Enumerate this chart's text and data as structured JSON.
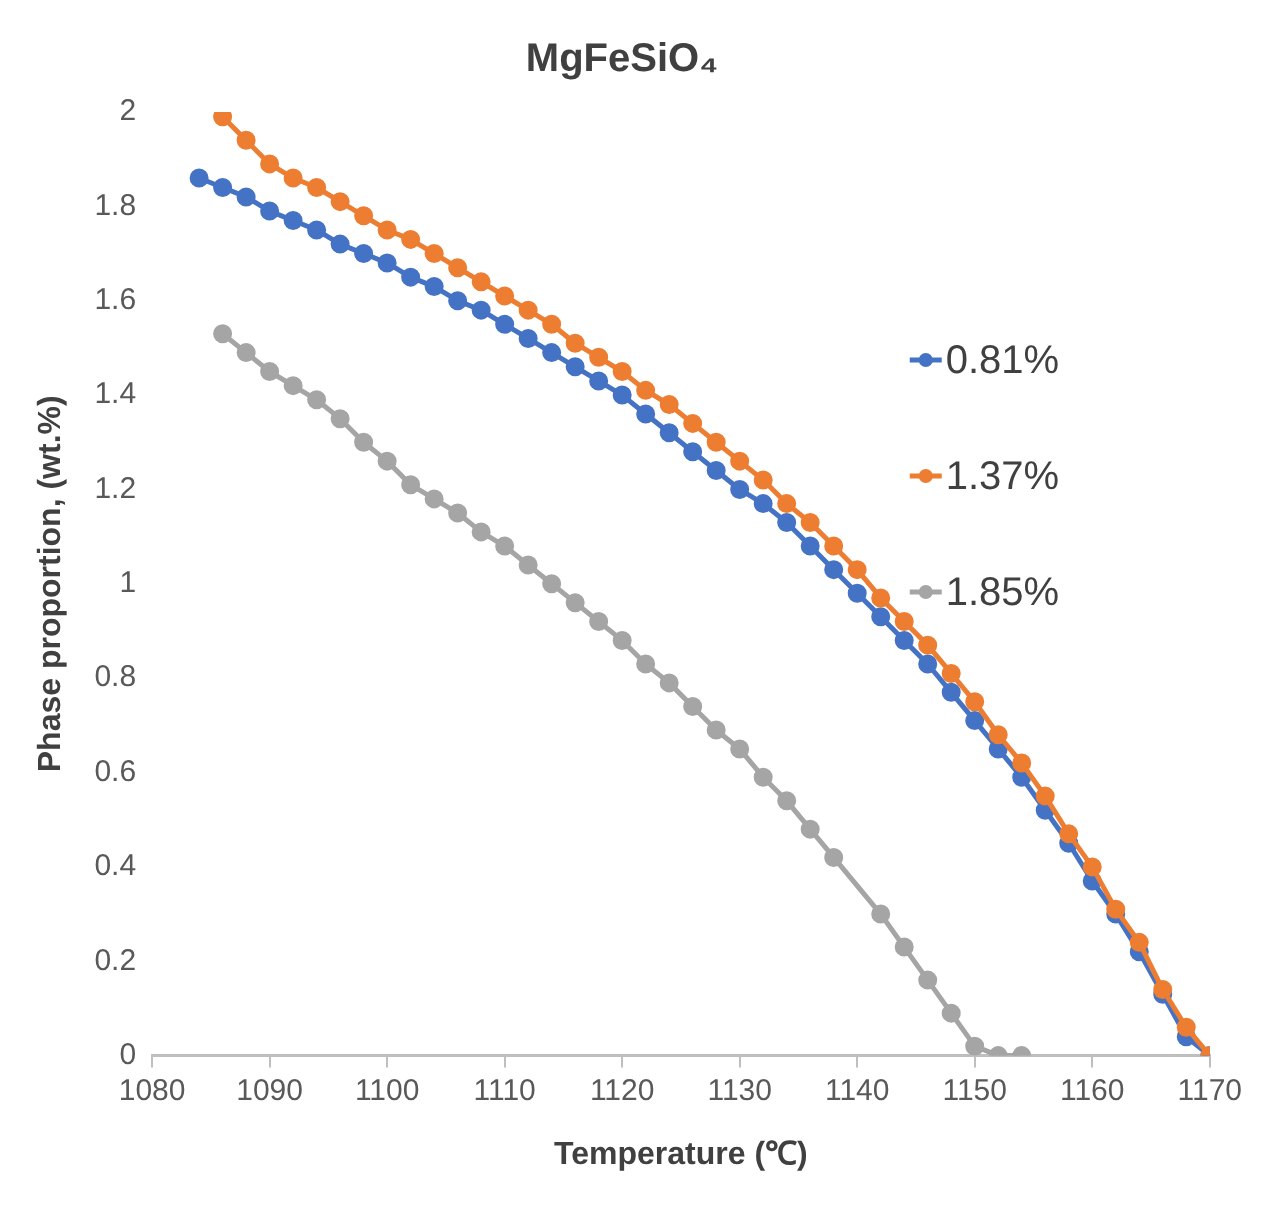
{
  "chart_data": {
    "type": "line",
    "title": "MgFeSiO₄",
    "xlabel": "Temperature (℃)",
    "ylabel": "Phase proportion, (wt.%)",
    "xlim": [
      1080,
      1170
    ],
    "ylim": [
      0,
      2
    ],
    "xticks": [
      1080,
      1090,
      1100,
      1110,
      1120,
      1130,
      1140,
      1150,
      1160,
      1170
    ],
    "yticks": [
      0,
      0.2,
      0.4,
      0.6,
      0.8,
      1,
      1.2,
      1.4,
      1.6,
      1.8,
      2
    ],
    "grid": false,
    "legend": "right",
    "marker": "circle",
    "line_style": "solid",
    "series": [
      {
        "name": "0.81%",
        "color": "#4472c4",
        "x": [
          1084,
          1086,
          1088,
          1090,
          1092,
          1094,
          1096,
          1098,
          1100,
          1102,
          1104,
          1106,
          1108,
          1110,
          1112,
          1114,
          1116,
          1118,
          1120,
          1122,
          1124,
          1126,
          1128,
          1130,
          1132,
          1134,
          1136,
          1138,
          1140,
          1142,
          1144,
          1146,
          1148,
          1150,
          1152,
          1154,
          1156,
          1158,
          1160,
          1162,
          1164,
          1166,
          1168,
          1170
        ],
        "values": [
          1.86,
          1.84,
          1.82,
          1.79,
          1.77,
          1.75,
          1.72,
          1.7,
          1.68,
          1.65,
          1.63,
          1.6,
          1.58,
          1.55,
          1.52,
          1.49,
          1.46,
          1.43,
          1.4,
          1.36,
          1.32,
          1.28,
          1.24,
          1.2,
          1.17,
          1.13,
          1.08,
          1.03,
          0.98,
          0.93,
          0.88,
          0.83,
          0.77,
          0.71,
          0.65,
          0.59,
          0.52,
          0.45,
          0.37,
          0.3,
          0.22,
          0.13,
          0.04,
          0
        ]
      },
      {
        "name": "1.37%",
        "color": "#ed7d31",
        "x": [
          1086,
          1088,
          1090,
          1092,
          1094,
          1096,
          1098,
          1100,
          1102,
          1104,
          1106,
          1108,
          1110,
          1112,
          1114,
          1116,
          1118,
          1120,
          1122,
          1124,
          1126,
          1128,
          1130,
          1132,
          1134,
          1136,
          1138,
          1140,
          1142,
          1144,
          1146,
          1148,
          1150,
          1152,
          1154,
          1156,
          1158,
          1160,
          1162,
          1164,
          1166,
          1168,
          1170
        ],
        "values": [
          1.99,
          1.94,
          1.89,
          1.86,
          1.84,
          1.81,
          1.78,
          1.75,
          1.73,
          1.7,
          1.67,
          1.64,
          1.61,
          1.58,
          1.55,
          1.51,
          1.48,
          1.45,
          1.41,
          1.38,
          1.34,
          1.3,
          1.26,
          1.22,
          1.17,
          1.13,
          1.08,
          1.03,
          0.97,
          0.92,
          0.87,
          0.81,
          0.75,
          0.68,
          0.62,
          0.55,
          0.47,
          0.4,
          0.31,
          0.24,
          0.14,
          0.06,
          0
        ]
      },
      {
        "name": "1.85%",
        "color": "#a5a5a5",
        "x": [
          1086,
          1088,
          1090,
          1092,
          1094,
          1096,
          1098,
          1100,
          1102,
          1104,
          1106,
          1108,
          1110,
          1112,
          1114,
          1116,
          1118,
          1120,
          1122,
          1124,
          1126,
          1128,
          1130,
          1132,
          1134,
          1136,
          1138,
          1142,
          1144,
          1146,
          1148,
          1150,
          1152,
          1154
        ],
        "values": [
          1.53,
          1.49,
          1.45,
          1.42,
          1.39,
          1.35,
          1.3,
          1.26,
          1.21,
          1.18,
          1.15,
          1.11,
          1.08,
          1.04,
          1,
          0.96,
          0.92,
          0.88,
          0.83,
          0.79,
          0.74,
          0.69,
          0.65,
          0.59,
          0.54,
          0.48,
          0.42,
          0.3,
          0.23,
          0.16,
          0.09,
          0.02,
          0,
          0
        ]
      }
    ]
  }
}
